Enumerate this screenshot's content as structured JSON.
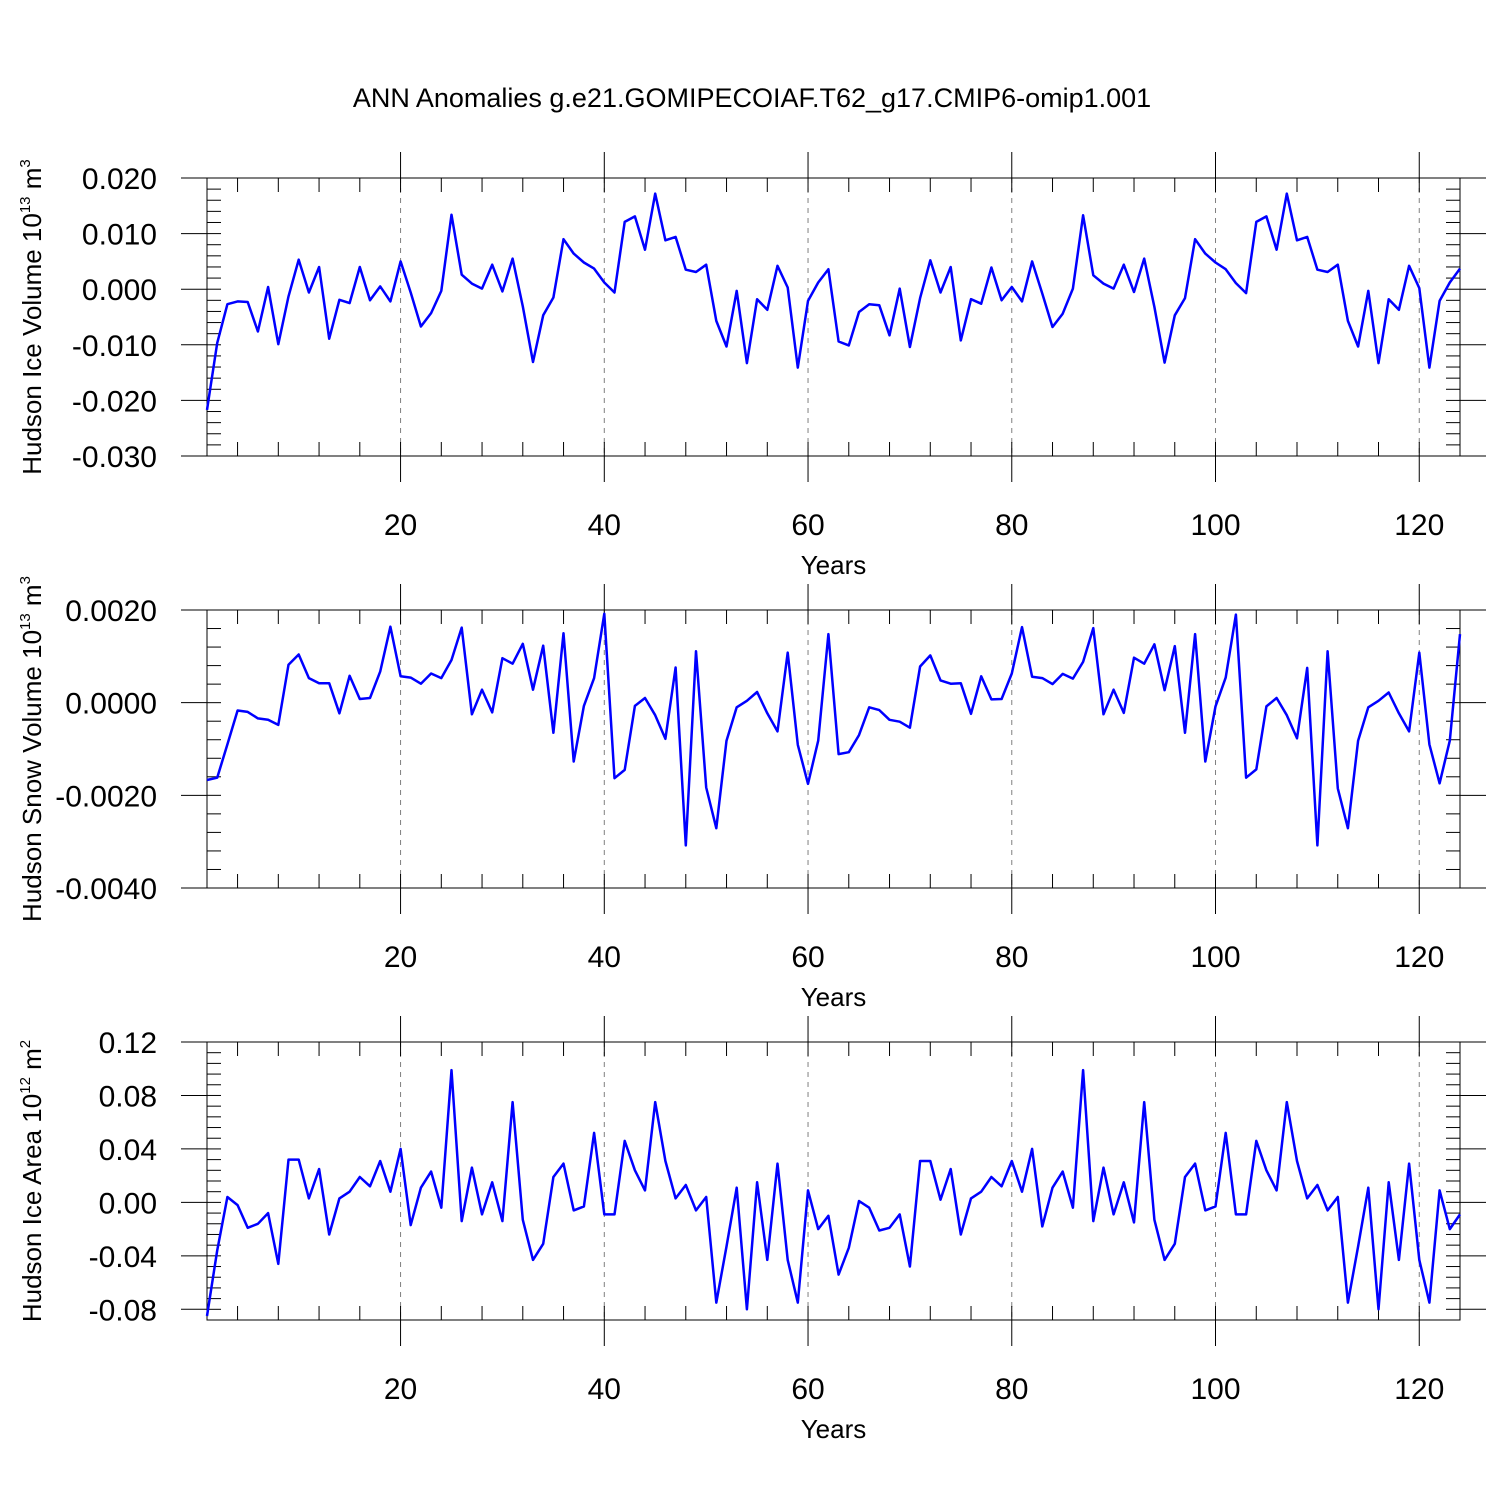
{
  "title": "ANN Anomalies g.e21.GOMIPECOIAF.T62_g17.CMIP6-omip1.001",
  "colors": {
    "line": "#0000ff",
    "axis": "#000000",
    "grid": "#808080"
  },
  "chart_data": [
    {
      "type": "line",
      "ylabel": {
        "text": "Hudson Ice Volume 10",
        "exp": "13",
        "unit": " m",
        "unit_exp": "3"
      },
      "xlabel": "Years",
      "xlim": [
        1,
        124
      ],
      "ylim": [
        -0.03,
        0.02
      ],
      "yticks": [
        -0.03,
        -0.02,
        -0.01,
        0.0,
        0.01,
        0.02
      ],
      "ytick_labels": [
        "-0.030",
        "-0.020",
        "-0.010",
        "0.000",
        "0.010",
        "0.020"
      ],
      "yminor_step": 0.002,
      "xticks": [
        20,
        40,
        60,
        80,
        100,
        120
      ],
      "xtick_labels": [
        "20",
        "40",
        "60",
        "80",
        "100",
        "120"
      ],
      "xminor_step": 4,
      "grid": "vertical-dashed",
      "x_start": 1,
      "values": [
        -0.0217,
        -0.0097,
        -0.0027,
        -0.0022,
        -0.0023,
        -0.0076,
        0.0004,
        -0.0099,
        -0.0013,
        0.0053,
        -0.0006,
        0.004,
        -0.0089,
        -0.0019,
        -0.0025,
        0.004,
        -0.002,
        0.0005,
        -0.0022,
        0.005,
        -0.0006,
        -0.0067,
        -0.0043,
        -0.0003,
        0.0134,
        0.0026,
        0.001,
        0.0001,
        0.0044,
        -0.0004,
        0.0055,
        -0.0031,
        -0.0131,
        -0.0047,
        -0.0015,
        0.009,
        0.0064,
        0.0048,
        0.0037,
        0.0012,
        -0.0006,
        0.0121,
        0.0131,
        0.0071,
        0.0172,
        0.0088,
        0.0094,
        0.0035,
        0.0031,
        0.0044,
        -0.0057,
        -0.0103,
        -0.0003,
        -0.0133,
        -0.0018,
        -0.0037,
        0.0042,
        0.0003,
        -0.0141,
        -0.0021,
        0.0012,
        0.0036,
        -0.0094,
        -0.0101,
        -0.0041,
        -0.0027,
        -0.0029,
        -0.0083,
        0.0001,
        -0.0104,
        -0.0016,
        0.0052,
        -0.0006,
        0.004,
        -0.0092,
        -0.0018,
        -0.0026,
        0.0039,
        -0.002,
        0.0004,
        -0.0022,
        0.005,
        -0.0008,
        -0.0068,
        -0.0044,
        0.0001,
        0.0133,
        0.0025,
        0.001,
        0.0001,
        0.0044,
        -0.0005,
        0.0055,
        -0.0032,
        -0.0132,
        -0.0047,
        -0.0016,
        0.009,
        0.0064,
        0.0048,
        0.0036,
        0.0011,
        -0.0007,
        0.0121,
        0.0131,
        0.0071,
        0.0172,
        0.0088,
        0.0094,
        0.0035,
        0.0031,
        0.0044,
        -0.0057,
        -0.0103,
        -0.0003,
        -0.0133,
        -0.0018,
        -0.0037,
        0.0042,
        0.0002,
        -0.0141,
        -0.0021,
        0.0012,
        0.0037
      ]
    },
    {
      "type": "line",
      "ylabel": {
        "text": "Hudson Snow Volume 10",
        "exp": "13",
        "unit": " m",
        "unit_exp": "3"
      },
      "xlabel": "Years",
      "xlim": [
        1,
        124
      ],
      "ylim": [
        -0.004,
        0.002
      ],
      "yticks": [
        -0.004,
        -0.002,
        0.0,
        0.002
      ],
      "ytick_labels": [
        "-0.0040",
        "-0.0020",
        "0.0000",
        "0.0020"
      ],
      "yminor_step": 0.0004,
      "xticks": [
        20,
        40,
        60,
        80,
        100,
        120
      ],
      "xtick_labels": [
        "20",
        "40",
        "60",
        "80",
        "100",
        "120"
      ],
      "xminor_step": 4,
      "grid": "vertical-dashed",
      "x_start": 1,
      "values": [
        -0.00167,
        -0.00162,
        -0.0009,
        -0.00017,
        -0.0002,
        -0.00034,
        -0.00037,
        -0.00048,
        0.00082,
        0.00104,
        0.00053,
        0.00042,
        0.00042,
        -0.00023,
        0.00058,
        8e-05,
        0.0001,
        0.00067,
        0.00164,
        0.00057,
        0.00054,
        0.00041,
        0.00063,
        0.00053,
        0.00092,
        0.00162,
        -0.00025,
        0.00028,
        -0.00021,
        0.00096,
        0.00084,
        0.00127,
        0.00028,
        0.00123,
        -0.00065,
        0.0015,
        -0.00127,
        -7e-05,
        0.00053,
        0.00192,
        -0.00163,
        -0.00145,
        -7e-05,
        0.0001,
        -0.00027,
        -0.00078,
        0.00076,
        -0.00308,
        0.00111,
        -0.00183,
        -0.00271,
        -0.00082,
        -0.0001,
        4e-05,
        0.00023,
        -0.00023,
        -0.00062,
        0.00108,
        -0.00091,
        -0.00175,
        -0.00082,
        0.00148,
        -0.00111,
        -0.00107,
        -0.0007,
        -0.0001,
        -0.00016,
        -0.00037,
        -0.00041,
        -0.00054,
        0.00078,
        0.00102,
        0.00048,
        0.00041,
        0.00042,
        -0.00024,
        0.00057,
        7e-05,
        8e-05,
        0.00063,
        0.00163,
        0.00056,
        0.00053,
        0.0004,
        0.00062,
        0.00052,
        0.00088,
        0.00161,
        -0.00025,
        0.00028,
        -0.00022,
        0.00097,
        0.00084,
        0.00126,
        0.00027,
        0.00122,
        -0.00065,
        0.00148,
        -0.00127,
        -8e-05,
        0.00054,
        0.0019,
        -0.00162,
        -0.00144,
        -8e-05,
        0.0001,
        -0.00027,
        -0.00077,
        0.00075,
        -0.00308,
        0.00111,
        -0.00185,
        -0.00271,
        -0.00082,
        -0.0001,
        4e-05,
        0.00022,
        -0.00023,
        -0.00062,
        0.00108,
        -0.0009,
        -0.00174,
        -0.00082,
        0.00148
      ]
    },
    {
      "type": "line",
      "ylabel": {
        "text": "Hudson Ice Area 10",
        "exp": "12",
        "unit": " m",
        "unit_exp": "2"
      },
      "xlabel": "Years",
      "xlim": [
        1,
        124
      ],
      "ylim": [
        -0.088,
        0.12
      ],
      "yticks": [
        -0.08,
        -0.04,
        0.0,
        0.04,
        0.08,
        0.12
      ],
      "ytick_labels": [
        "-0.08",
        "-0.04",
        "0.00",
        "0.04",
        "0.08",
        "0.12"
      ],
      "yminor_step": 0.008,
      "xticks": [
        20,
        40,
        60,
        80,
        100,
        120
      ],
      "xtick_labels": [
        "20",
        "40",
        "60",
        "80",
        "100",
        "120"
      ],
      "xminor_step": 4,
      "grid": "vertical-dashed",
      "x_start": 1,
      "values": [
        -0.085,
        -0.036,
        0.004,
        -0.002,
        -0.019,
        -0.016,
        -0.008,
        -0.046,
        0.032,
        0.032,
        0.003,
        0.025,
        -0.024,
        0.003,
        0.008,
        0.019,
        0.012,
        0.031,
        0.008,
        0.04,
        -0.017,
        0.011,
        0.023,
        -0.004,
        0.099,
        -0.014,
        0.026,
        -0.009,
        0.015,
        -0.014,
        0.075,
        -0.013,
        -0.043,
        -0.031,
        0.019,
        0.029,
        -0.006,
        -0.003,
        0.052,
        -0.009,
        -0.009,
        0.046,
        0.024,
        0.009,
        0.075,
        0.031,
        0.003,
        0.013,
        -0.006,
        0.004,
        -0.075,
        -0.033,
        0.011,
        -0.08,
        0.015,
        -0.043,
        0.029,
        -0.043,
        -0.075,
        0.009,
        -0.02,
        -0.01,
        -0.054,
        -0.034,
        0.001,
        -0.004,
        -0.021,
        -0.019,
        -0.009,
        -0.048,
        0.031,
        0.031,
        0.002,
        0.025,
        -0.024,
        0.003,
        0.008,
        0.019,
        0.012,
        0.031,
        0.008,
        0.04,
        -0.018,
        0.011,
        0.023,
        -0.004,
        0.099,
        -0.014,
        0.026,
        -0.009,
        0.015,
        -0.015,
        0.075,
        -0.013,
        -0.043,
        -0.031,
        0.019,
        0.029,
        -0.006,
        -0.003,
        0.052,
        -0.009,
        -0.009,
        0.046,
        0.024,
        0.009,
        0.075,
        0.031,
        0.003,
        0.013,
        -0.006,
        0.004,
        -0.075,
        -0.033,
        0.011,
        -0.08,
        0.015,
        -0.043,
        0.029,
        -0.043,
        -0.075,
        0.009,
        -0.02,
        -0.009
      ]
    }
  ]
}
